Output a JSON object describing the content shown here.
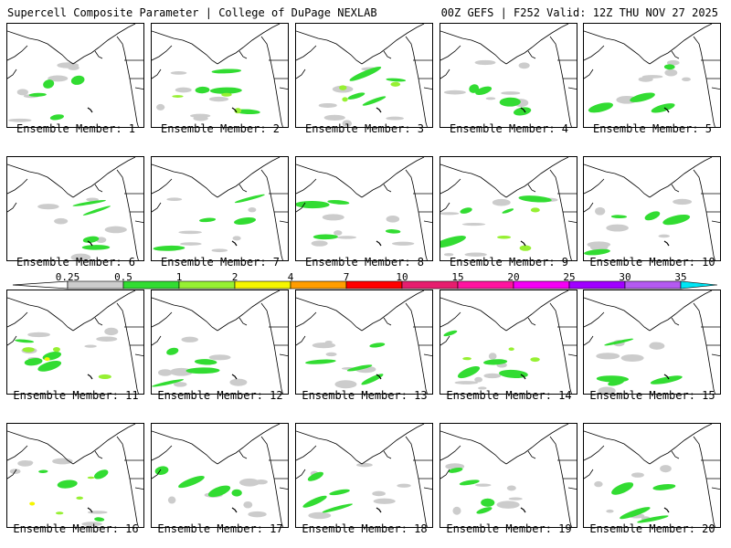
{
  "header": {
    "left": "Supercell Composite Parameter | College of DuPage NEXLAB",
    "right": "00Z GEFS | F252 Valid: 12Z THU NOV 27 2025"
  },
  "legend": {
    "labels": [
      "0.25",
      "0.5",
      "1",
      "2",
      "4",
      "7",
      "10",
      "15",
      "20",
      "25",
      "30",
      "35"
    ],
    "colors": [
      "#cccccc",
      "#32dc32",
      "#96f032",
      "#f5f500",
      "#ff9d00",
      "#ff0000",
      "#e61e6e",
      "#ff14a0",
      "#f500f5",
      "#a000ff",
      "#b45af0",
      "#00e6f5"
    ]
  },
  "members": [
    {
      "label": "Ensemble Member: 1",
      "level": 1
    },
    {
      "label": "Ensemble Member: 2",
      "level": 2
    },
    {
      "label": "Ensemble Member: 3",
      "level": 2
    },
    {
      "label": "Ensemble Member: 4",
      "level": 1
    },
    {
      "label": "Ensemble Member: 5",
      "level": 1
    },
    {
      "label": "Ensemble Member: 6",
      "level": 1
    },
    {
      "label": "Ensemble Member: 7",
      "level": 1
    },
    {
      "label": "Ensemble Member: 8",
      "level": 1
    },
    {
      "label": "Ensemble Member: 9",
      "level": 2
    },
    {
      "label": "Ensemble Member: 10",
      "level": 1
    },
    {
      "label": "Ensemble Member: 11",
      "level": 3
    },
    {
      "label": "Ensemble Member: 12",
      "level": 1
    },
    {
      "label": "Ensemble Member: 13",
      "level": 1
    },
    {
      "label": "Ensemble Member: 14",
      "level": 2
    },
    {
      "label": "Ensemble Member: 15",
      "level": 1
    },
    {
      "label": "Ensemble Member: 16",
      "level": 3
    },
    {
      "label": "Ensemble Member: 17",
      "level": 1
    },
    {
      "label": "Ensemble Member: 18",
      "level": 1
    },
    {
      "label": "Ensemble Member: 19",
      "level": 1
    },
    {
      "label": "Ensemble Member: 20",
      "level": 1
    }
  ]
}
